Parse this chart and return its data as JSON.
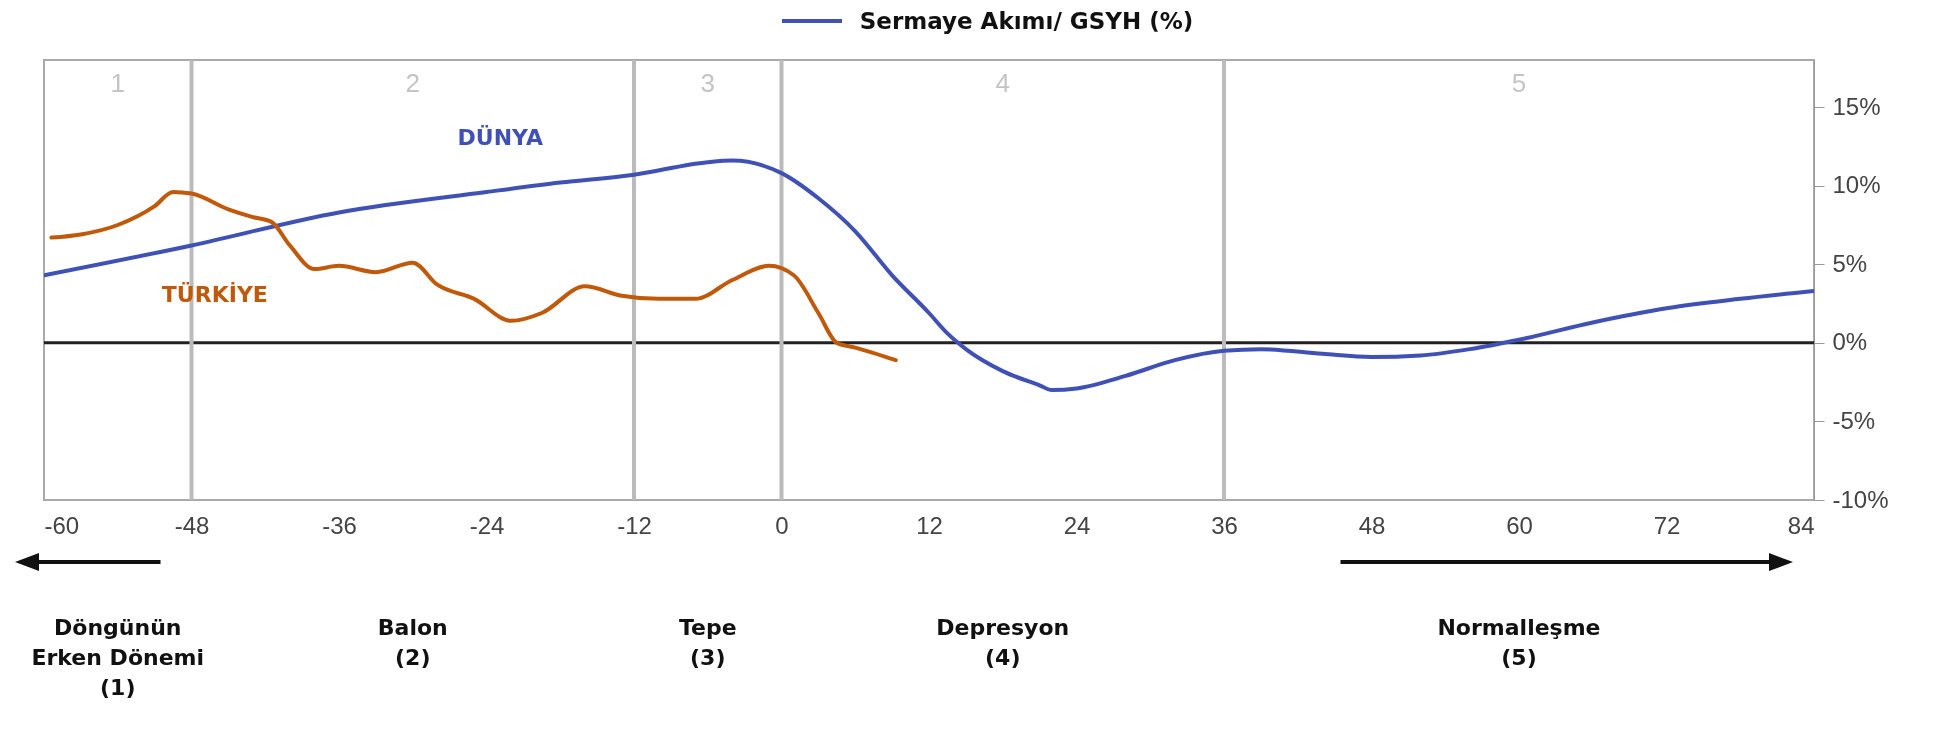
{
  "chart_data": {
    "type": "line",
    "title": "Sermaye Akımı/ GSYH (%)",
    "xlim": [
      -60,
      84
    ],
    "xticks": [
      -60,
      -48,
      -36,
      -24,
      -12,
      0,
      12,
      24,
      36,
      48,
      60,
      72,
      84
    ],
    "ylim": [
      -10,
      18
    ],
    "yticks": [
      {
        "value": -10,
        "label": "-10%"
      },
      {
        "value": -5,
        "label": "-5%"
      },
      {
        "value": 0,
        "label": "0%"
      },
      {
        "value": 5,
        "label": "5%"
      },
      {
        "value": 10,
        "label": "10%"
      },
      {
        "value": 15,
        "label": "15%"
      }
    ],
    "grid": false,
    "legend": false,
    "marker": "none",
    "line_style": "solid",
    "series": [
      {
        "name": "DÜNYA",
        "color": "#3f51b5",
        "x": [
          -60,
          -48,
          -36,
          -24,
          -18,
          -12,
          -6,
          -4,
          0,
          3,
          6,
          9,
          12,
          13.5,
          15,
          18,
          21,
          22,
          24,
          28,
          32,
          36,
          39,
          44,
          48,
          52,
          56,
          60,
          66,
          72,
          78,
          84
        ],
        "values": [
          4.3,
          6.2,
          8.3,
          9.6,
          10.2,
          10.7,
          11.5,
          11.6,
          10.8,
          9.2,
          7.1,
          4.3,
          1.9,
          0.6,
          -0.4,
          -1.8,
          -2.7,
          -3.0,
          -2.9,
          -2.1,
          -1.1,
          -0.5,
          -0.4,
          -0.7,
          -0.9,
          -0.8,
          -0.4,
          0.2,
          1.3,
          2.2,
          2.8,
          3.3
        ]
      },
      {
        "name": "TÜRKİYE",
        "color": "#c0590a",
        "x": [
          -59.4,
          -57,
          -54,
          -51,
          -49.5,
          -48,
          -45,
          -43,
          -41.5,
          -40,
          -38,
          -36,
          -33,
          -30,
          -28,
          -25,
          -22,
          -19.5,
          -16,
          -13,
          -10,
          -7,
          -4,
          -1,
          1,
          3,
          4.5,
          6,
          9.3
        ],
        "values": [
          6.7,
          6.9,
          7.5,
          8.7,
          9.6,
          9.5,
          8.5,
          8.0,
          7.7,
          6.2,
          4.7,
          4.9,
          4.5,
          5.1,
          3.7,
          2.8,
          1.4,
          1.9,
          3.6,
          3.0,
          2.8,
          2.8,
          4.0,
          4.9,
          4.3,
          1.9,
          0,
          -0.3,
          -1.1
        ]
      }
    ],
    "ref_lines": [
      {
        "axis": "y",
        "value": 0,
        "label": null,
        "color": "#222222"
      },
      {
        "axis": "x",
        "value": -48,
        "label": null,
        "color": "#bbbbbb"
      },
      {
        "axis": "x",
        "value": -12,
        "label": null,
        "color": "#bbbbbb"
      },
      {
        "axis": "x",
        "value": 0,
        "label": null,
        "color": "#bbbbbb"
      },
      {
        "axis": "x",
        "value": 36,
        "label": null,
        "color": "#bbbbbb"
      }
    ],
    "annotations": [
      "1",
      "2",
      "3",
      "4",
      "5",
      "Döngünün\nErken Dönemi\n(1)",
      "Balon\n\n(2)",
      "Tepe\n\n(3)",
      "Depresyon\n\n(4)",
      "Normalleşme\n\n(5)"
    ]
  }
}
